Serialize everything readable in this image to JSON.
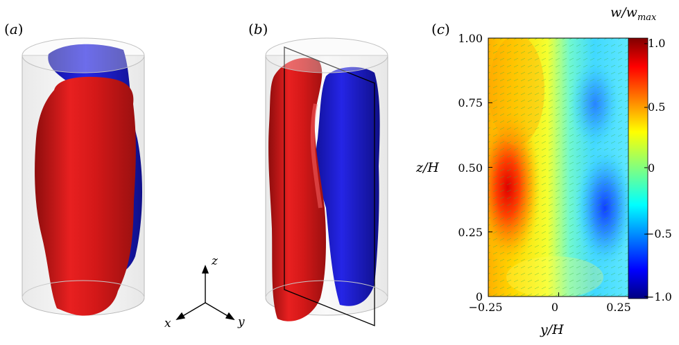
{
  "panels": {
    "a": {
      "label": "a"
    },
    "b": {
      "label": "b"
    },
    "c": {
      "label": "c"
    }
  },
  "axes_triad": {
    "x": "x",
    "y": "y",
    "z": "z"
  },
  "chart_data": {
    "type": "heatmap",
    "xlabel": "y/H",
    "ylabel": "z/H",
    "xlim": [
      -0.25,
      0.25
    ],
    "ylim": [
      0,
      1.0
    ],
    "x_ticks": [
      "−0.25",
      "0",
      "0.25"
    ],
    "y_ticks": [
      "0",
      "0.25",
      "0.50",
      "0.75",
      "1.00"
    ],
    "colorbar": {
      "label_base": "w/w",
      "label_sub": "max",
      "range": [
        -1.0,
        1.0
      ],
      "ticks": [
        "1.0",
        "0.5",
        "0",
        "−0.5",
        "−1.0"
      ],
      "colormap": "jet"
    }
  },
  "colors": {
    "positive_blob": "#d81818",
    "negative_blob": "#1a1ad0",
    "cylinder": "#e8e8e8"
  }
}
